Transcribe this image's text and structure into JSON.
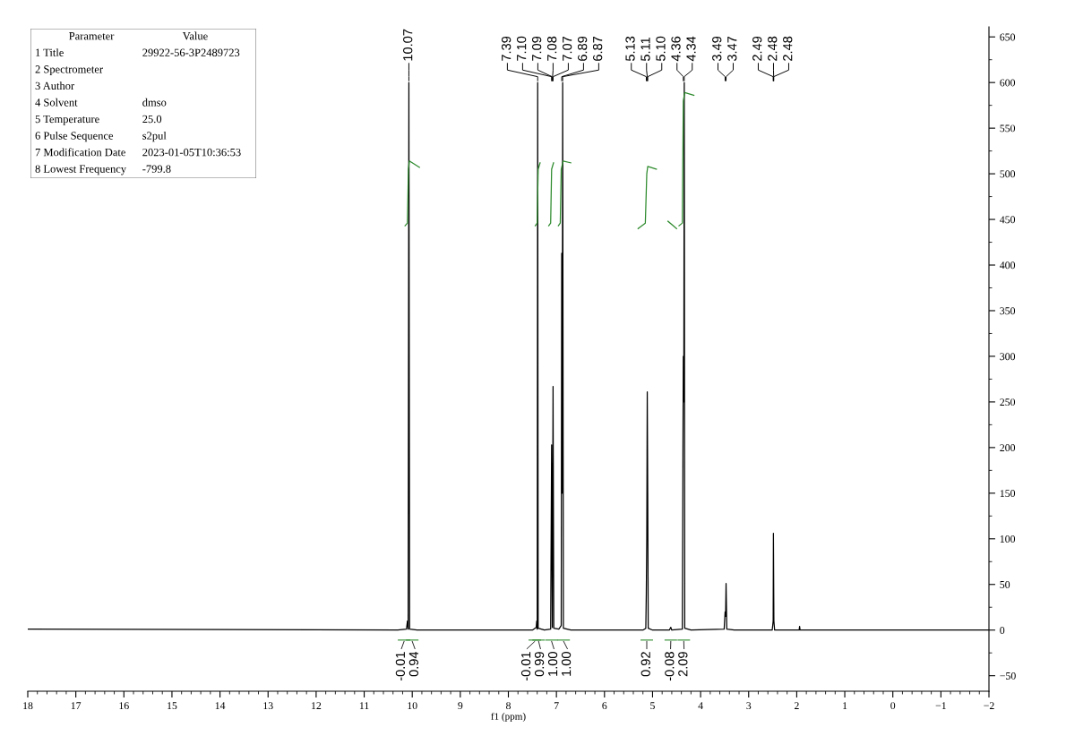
{
  "chart_data": [
    {
      "type": "line",
      "xlabel": "f1 (ppm)",
      "xlim": [
        18,
        -2
      ],
      "xticks": [
        {
          "value": 18,
          "label": "18"
        },
        {
          "value": 17,
          "label": "17"
        },
        {
          "value": 16,
          "label": "16"
        },
        {
          "value": 15,
          "label": "15"
        },
        {
          "value": 14,
          "label": "14"
        },
        {
          "value": 13,
          "label": "13"
        },
        {
          "value": 12,
          "label": "12"
        },
        {
          "value": 11,
          "label": "11"
        },
        {
          "value": 10,
          "label": "10"
        },
        {
          "value": 9,
          "label": "9"
        },
        {
          "value": 8,
          "label": "8"
        },
        {
          "value": 7,
          "label": "7"
        },
        {
          "value": 6,
          "label": "6"
        },
        {
          "value": 5,
          "label": "5"
        },
        {
          "value": 4,
          "label": "4"
        },
        {
          "value": 3,
          "label": "3"
        },
        {
          "value": 2,
          "label": "2"
        },
        {
          "value": 1,
          "label": "1"
        },
        {
          "value": 0,
          "label": "0"
        },
        {
          "value": -1,
          "label": "−1"
        },
        {
          "value": -2,
          "label": "−2"
        }
      ],
      "ylim": [
        -67,
        661
      ],
      "yticks": [
        {
          "value": -50,
          "label": "−50"
        },
        0,
        50,
        100,
        150,
        200,
        250,
        300,
        350,
        400,
        450,
        500,
        550,
        600,
        650
      ],
      "grid": false,
      "marker": "none",
      "line_style": "solid",
      "series": [
        {
          "color": "#000000",
          "x": [
            18,
            10.3,
            10.12,
            10.1,
            10.085,
            10.07,
            10.055,
            9.9,
            7.5,
            7.42,
            7.41,
            7.4,
            7.39,
            7.38,
            7.25,
            7.12,
            7.1,
            7.085,
            7.07,
            7.055,
            6.95,
            6.9,
            6.89,
            6.88,
            6.87,
            6.855,
            6.7,
            5.2,
            5.14,
            5.13,
            5.12,
            5.11,
            5.1,
            5.09,
            5.0,
            4.65,
            4.62,
            4.6,
            4.38,
            4.36,
            4.35,
            4.34,
            4.33,
            4.2,
            3.51,
            3.49,
            3.48,
            3.47,
            3.455,
            3.3,
            2.51,
            2.49,
            2.485,
            2.475,
            2.46,
            1.95,
            1.94,
            1.93,
            -2
          ],
          "values": [
            1,
            0,
            1,
            10,
            1,
            600,
            1,
            0,
            0,
            3,
            10,
            1,
            600,
            2,
            0,
            1,
            203,
            3,
            267,
            2,
            1,
            5,
            413,
            150,
            600,
            2,
            0,
            0,
            2,
            40,
            100,
            261,
            151,
            2,
            0,
            0,
            3,
            0,
            1,
            300,
            250,
            600,
            2,
            0,
            1,
            20,
            15,
            51,
            1,
            0,
            0,
            10,
            106,
            10,
            0,
            0,
            4,
            0,
            0
          ]
        },
        {
          "color": "#2e8b2e",
          "x": [
            10.15,
            10.1,
            10.08,
            10.06,
            9.85
          ],
          "values": [
            443,
            446,
            505,
            514,
            507
          ]
        },
        {
          "color": "#2e8b2e",
          "x": [
            7.44,
            7.4,
            7.38,
            7.34
          ],
          "values": [
            443,
            446,
            505,
            512
          ]
        },
        {
          "color": "#2e8b2e",
          "x": [
            7.16,
            7.12,
            7.1,
            7.06
          ],
          "values": [
            443,
            446,
            505,
            512
          ]
        },
        {
          "color": "#2e8b2e",
          "x": [
            6.96,
            6.92,
            6.9,
            6.86,
            6.7
          ],
          "values": [
            443,
            446,
            505,
            514,
            512
          ]
        },
        {
          "color": "#2e8b2e",
          "x": [
            5.3,
            5.15,
            5.12,
            5.1,
            4.92
          ],
          "values": [
            440,
            446,
            500,
            508,
            505
          ]
        },
        {
          "color": "#2e8b2e",
          "x": [
            4.68,
            4.5
          ],
          "values": [
            448,
            440
          ]
        },
        {
          "color": "#2e8b2e",
          "x": [
            4.45,
            4.38,
            4.36,
            4.33,
            4.14
          ],
          "values": [
            443,
            446,
            580,
            589,
            586
          ]
        }
      ],
      "annotations": [
        {
          "text": "10.07",
          "x": 10.07,
          "y": 600
        },
        {
          "text": "7.39",
          "x": 7.39,
          "y": 600
        },
        "7.10",
        "7.09",
        "7.08",
        "7.07",
        "6.89",
        {
          "text": "6.87",
          "x": 6.87,
          "y": 600
        },
        "5.13",
        "5.11",
        "5.10",
        "4.36",
        {
          "text": "4.34",
          "x": 4.34,
          "y": 600
        },
        "3.49",
        "3.47",
        "2.49",
        "2.48",
        "2.48",
        {
          "text": "-0.01",
          "x": 10.17,
          "y": 0
        },
        {
          "text": "0.94",
          "x": 10.0,
          "y": 0
        },
        {
          "text": "-0.01",
          "x": 7.45,
          "y": 0
        },
        {
          "text": "0.99",
          "x": 7.37,
          "y": 0
        },
        {
          "text": "1.00",
          "x": 7.1,
          "y": 0
        },
        {
          "text": "1.00",
          "x": 6.85,
          "y": 0
        },
        {
          "text": "0.92",
          "x": 5.12,
          "y": 0
        },
        {
          "text": "-0.08",
          "x": 4.62,
          "y": 0
        },
        {
          "text": "2.09",
          "x": 4.35,
          "y": 0
        }
      ]
    },
    {
      "type": "other",
      "categories": [
        "Parameter",
        "Value"
      ],
      "y_categories": [
        "1 Title",
        "2 Spectrometer",
        "3 Author",
        "4 Solvent",
        "5 Temperature",
        "6 Pulse Sequence",
        "7 Modification Date",
        "8 Lowest Frequency"
      ],
      "cell_labels": [
        "29922-56-3P2489723",
        null,
        null,
        "dmso",
        "25.0",
        "s2pul",
        "2023-01-05T10:36:53",
        "-799.8"
      ]
    }
  ]
}
